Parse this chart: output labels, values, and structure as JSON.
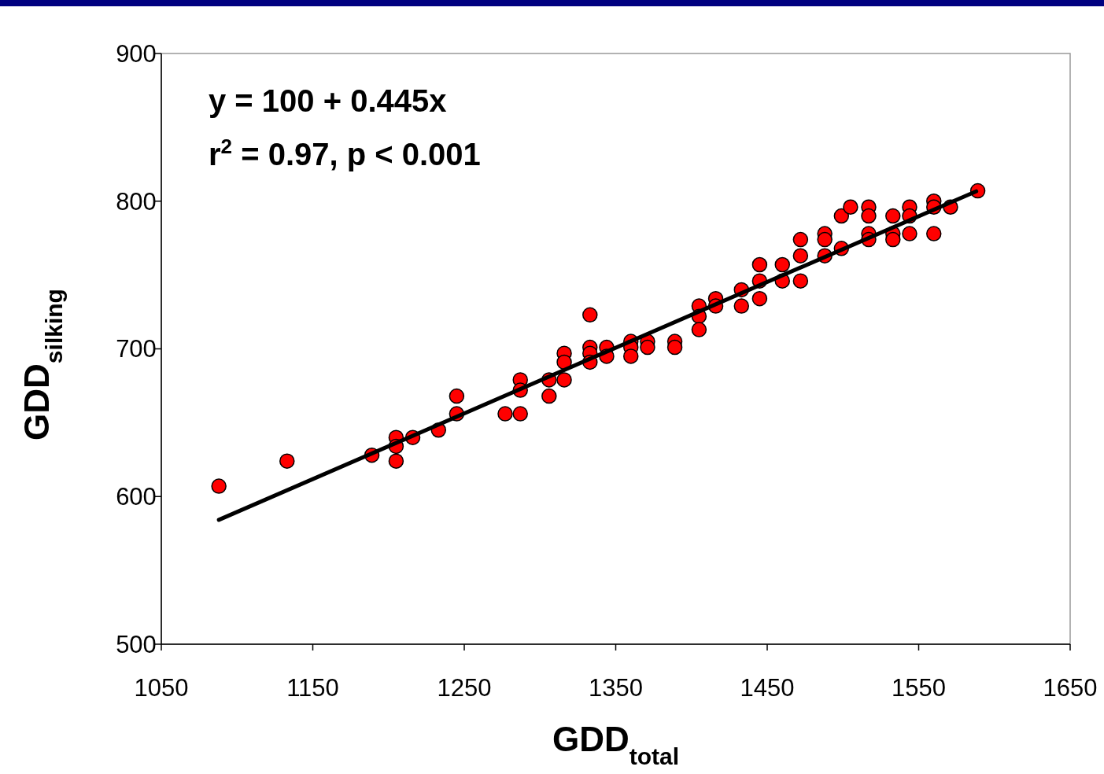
{
  "chart_data": {
    "type": "scatter",
    "xlabel": "GDD$_{total}$",
    "ylabel": "GDD$_{silking}$",
    "annotations": [
      "y = 100 + 0.445x",
      "r$^{2}$ = 0.97, p < 0.001"
    ],
    "xlim": [
      1050,
      1650
    ],
    "xticks": [
      1050,
      1150,
      1250,
      1350,
      1450,
      1550,
      1650
    ],
    "ylim": [
      500,
      900
    ],
    "yticks": [
      500,
      600,
      700,
      800,
      900
    ],
    "grid": false,
    "marker": "circle",
    "series": [
      {
        "color": "#ff0000",
        "x": [
          1088,
          1133,
          1189,
          1205,
          1205,
          1205,
          1216,
          1233,
          1245,
          1245,
          1277,
          1287,
          1287,
          1287,
          1306,
          1306,
          1316,
          1316,
          1316,
          1333,
          1333,
          1333,
          1333,
          1344,
          1344,
          1360,
          1360,
          1360,
          1371,
          1371,
          1389,
          1389,
          1405,
          1405,
          1405,
          1416,
          1416,
          1433,
          1433,
          1445,
          1445,
          1445,
          1460,
          1460,
          1472,
          1472,
          1472,
          1488,
          1488,
          1488,
          1499,
          1499,
          1505,
          1517,
          1517,
          1517,
          1517,
          1533,
          1533,
          1533,
          1544,
          1544,
          1544,
          1560,
          1560,
          1560,
          1571,
          1589
        ],
        "values": [
          607,
          624,
          628,
          640,
          634,
          624,
          640,
          645,
          668,
          656,
          656,
          679,
          672,
          656,
          679,
          668,
          697,
          691,
          679,
          701,
          697,
          691,
          723,
          701,
          695,
          705,
          701,
          695,
          705,
          701,
          705,
          701,
          729,
          722,
          713,
          734,
          729,
          740,
          729,
          757,
          746,
          734,
          757,
          746,
          774,
          763,
          746,
          778,
          774,
          763,
          790,
          768,
          796,
          796,
          790,
          778,
          774,
          790,
          778,
          774,
          796,
          790,
          778,
          800,
          796,
          778,
          796,
          807
        ]
      },
      {
        "type": "line",
        "color": "#000000",
        "marker": "none",
        "line_style": "solid",
        "x": [
          1088,
          1588
        ],
        "values": [
          584.2,
          806.7
        ]
      }
    ]
  }
}
